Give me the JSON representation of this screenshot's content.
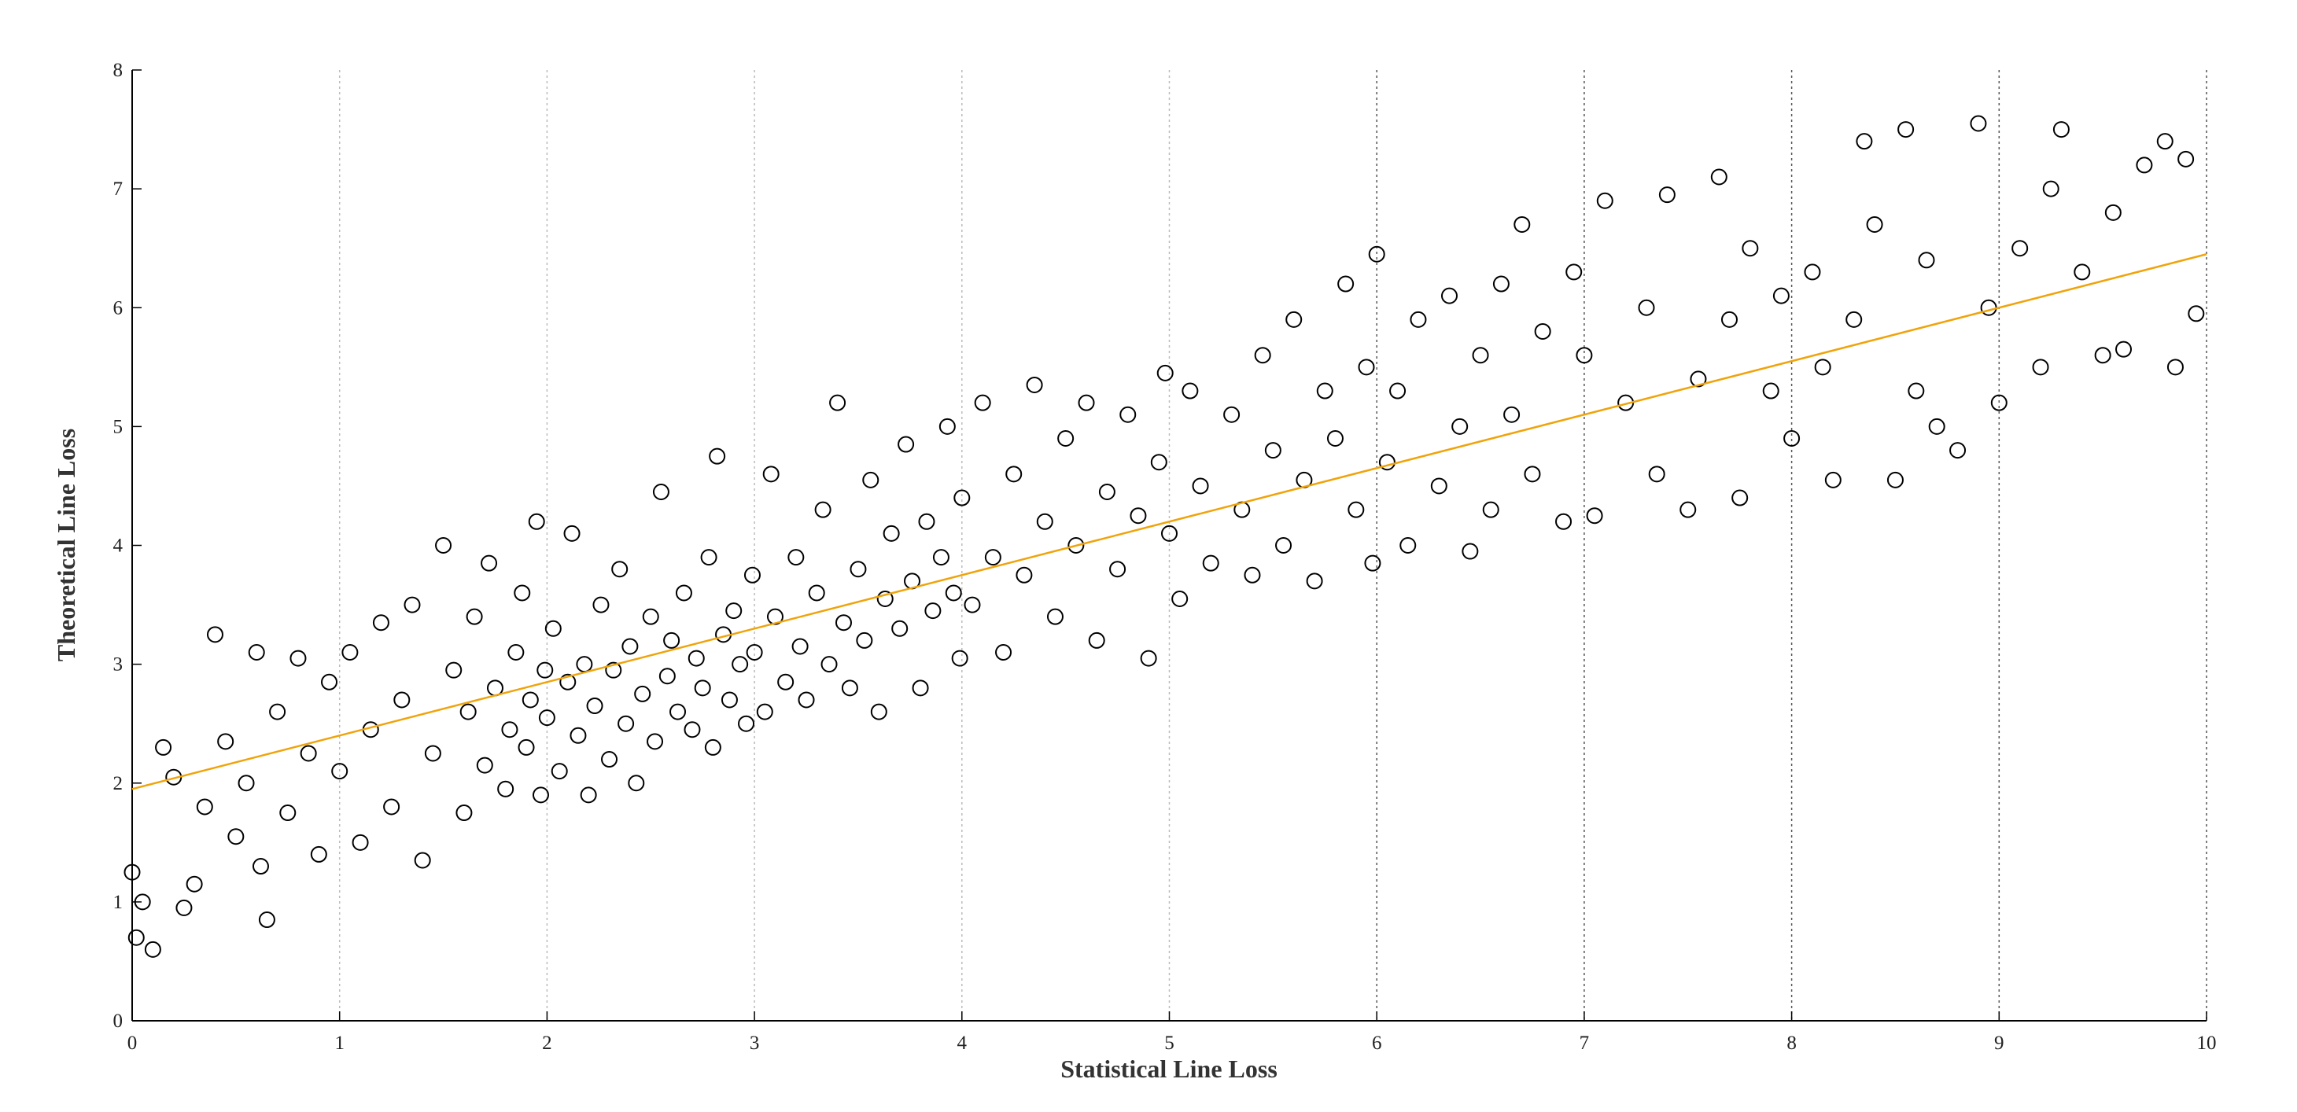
{
  "chart_data": {
    "type": "scatter",
    "x_label": "Statistical Line Loss",
    "y_label": "Theoretical Line Loss",
    "xlim": [
      0,
      10
    ],
    "ylim": [
      0,
      8
    ],
    "xticks": [
      0,
      1,
      2,
      3,
      4,
      5,
      6,
      7,
      8,
      9,
      10
    ],
    "yticks": [
      0,
      1,
      2,
      3,
      4,
      5,
      6,
      7,
      8
    ],
    "grid": true,
    "series": [
      {
        "type": "scatter",
        "color": "#000000",
        "x": [
          0.0,
          0.02,
          0.05,
          0.1,
          0.15,
          0.2,
          0.25,
          0.3,
          0.35,
          0.4,
          0.45,
          0.5,
          0.55,
          0.6,
          0.62,
          0.65,
          0.7,
          0.75,
          0.8,
          0.85,
          0.9,
          0.95,
          1.0,
          1.05,
          1.1,
          1.15,
          1.2,
          1.25,
          1.3,
          1.35,
          1.4,
          1.45,
          1.5,
          1.55,
          1.6,
          1.62,
          1.65,
          1.7,
          1.72,
          1.75,
          1.8,
          1.82,
          1.85,
          1.88,
          1.9,
          1.92,
          1.95,
          1.97,
          1.99,
          2.0,
          2.03,
          2.06,
          2.1,
          2.12,
          2.15,
          2.18,
          2.2,
          2.23,
          2.26,
          2.3,
          2.32,
          2.35,
          2.38,
          2.4,
          2.43,
          2.46,
          2.5,
          2.52,
          2.55,
          2.58,
          2.6,
          2.63,
          2.66,
          2.7,
          2.72,
          2.75,
          2.78,
          2.8,
          2.82,
          2.85,
          2.88,
          2.9,
          2.93,
          2.96,
          2.99,
          3.0,
          3.05,
          3.08,
          3.1,
          3.15,
          3.2,
          3.22,
          3.25,
          3.3,
          3.33,
          3.36,
          3.4,
          3.43,
          3.46,
          3.5,
          3.53,
          3.56,
          3.6,
          3.63,
          3.66,
          3.7,
          3.73,
          3.76,
          3.8,
          3.83,
          3.86,
          3.9,
          3.93,
          3.96,
          3.99,
          4.0,
          4.05,
          4.1,
          4.15,
          4.2,
          4.25,
          4.3,
          4.35,
          4.4,
          4.45,
          4.5,
          4.55,
          4.6,
          4.65,
          4.7,
          4.75,
          4.8,
          4.85,
          4.9,
          4.95,
          4.98,
          5.0,
          5.05,
          5.1,
          5.15,
          5.2,
          5.3,
          5.35,
          5.4,
          5.45,
          5.5,
          5.55,
          5.6,
          5.65,
          5.7,
          5.75,
          5.8,
          5.85,
          5.9,
          5.95,
          5.98,
          6.0,
          6.05,
          6.1,
          6.15,
          6.2,
          6.3,
          6.35,
          6.4,
          6.45,
          6.5,
          6.55,
          6.6,
          6.65,
          6.7,
          6.75,
          6.8,
          6.9,
          6.95,
          7.0,
          7.05,
          7.1,
          7.2,
          7.3,
          7.35,
          7.4,
          7.5,
          7.55,
          7.65,
          7.7,
          7.75,
          7.8,
          7.9,
          7.95,
          8.0,
          8.1,
          8.15,
          8.2,
          8.3,
          8.35,
          8.4,
          8.5,
          8.55,
          8.6,
          8.65,
          8.7,
          8.8,
          8.9,
          8.95,
          9.0,
          9.1,
          9.2,
          9.25,
          9.3,
          9.4,
          9.5,
          9.55,
          9.6,
          9.7,
          9.8,
          9.85,
          9.9,
          9.95
        ],
        "values": [
          1.25,
          0.7,
          1.0,
          0.6,
          2.3,
          2.05,
          0.95,
          1.15,
          1.8,
          3.25,
          2.35,
          1.55,
          2.0,
          3.1,
          1.3,
          0.85,
          2.6,
          1.75,
          3.05,
          2.25,
          1.4,
          2.85,
          2.1,
          3.1,
          1.5,
          2.45,
          3.35,
          1.8,
          2.7,
          3.5,
          1.35,
          2.25,
          4.0,
          2.95,
          1.75,
          2.6,
          3.4,
          2.15,
          3.85,
          2.8,
          1.95,
          2.45,
          3.1,
          3.6,
          2.3,
          2.7,
          4.2,
          1.9,
          2.95,
          2.55,
          3.3,
          2.1,
          2.85,
          4.1,
          2.4,
          3.0,
          1.9,
          2.65,
          3.5,
          2.2,
          2.95,
          3.8,
          2.5,
          3.15,
          2.0,
          2.75,
          3.4,
          2.35,
          4.45,
          2.9,
          3.2,
          2.6,
          3.6,
          2.45,
          3.05,
          2.8,
          3.9,
          2.3,
          4.75,
          3.25,
          2.7,
          3.45,
          3.0,
          2.5,
          3.75,
          3.1,
          2.6,
          4.6,
          3.4,
          2.85,
          3.9,
          3.15,
          2.7,
          3.6,
          4.3,
          3.0,
          5.2,
          3.35,
          2.8,
          3.8,
          3.2,
          4.55,
          2.6,
          3.55,
          4.1,
          3.3,
          4.85,
          3.7,
          2.8,
          4.2,
          3.45,
          3.9,
          5.0,
          3.6,
          3.05,
          4.4,
          3.5,
          5.2,
          3.9,
          3.1,
          4.6,
          3.75,
          5.35,
          4.2,
          3.4,
          4.9,
          4.0,
          5.2,
          3.2,
          4.45,
          3.8,
          5.1,
          4.25,
          3.05,
          4.7,
          5.45,
          4.1,
          3.55,
          5.3,
          4.5,
          3.85,
          5.1,
          4.3,
          3.75,
          5.6,
          4.8,
          4.0,
          5.9,
          4.55,
          3.7,
          5.3,
          4.9,
          6.2,
          4.3,
          5.5,
          3.85,
          6.45,
          4.7,
          5.3,
          4.0,
          5.9,
          4.5,
          6.1,
          5.0,
          3.95,
          5.6,
          4.3,
          6.2,
          5.1,
          6.7,
          4.6,
          5.8,
          4.2,
          6.3,
          5.6,
          4.25,
          6.9,
          5.2,
          6.0,
          4.6,
          6.95,
          4.3,
          5.4,
          7.1,
          5.9,
          4.4,
          6.5,
          5.3,
          6.1,
          4.9,
          6.3,
          5.5,
          4.55,
          5.9,
          7.4,
          6.7,
          4.55,
          7.5,
          5.3,
          6.4,
          5.0,
          4.8,
          7.55,
          6.0,
          5.2,
          6.5,
          5.5,
          7.0,
          7.5,
          6.3,
          5.6,
          6.8,
          5.65,
          7.2,
          7.4,
          5.5,
          7.25,
          5.95
        ]
      },
      {
        "type": "line",
        "color": "#f0a30a",
        "x": [
          0,
          10
        ],
        "values": [
          1.95,
          6.45
        ]
      }
    ]
  }
}
